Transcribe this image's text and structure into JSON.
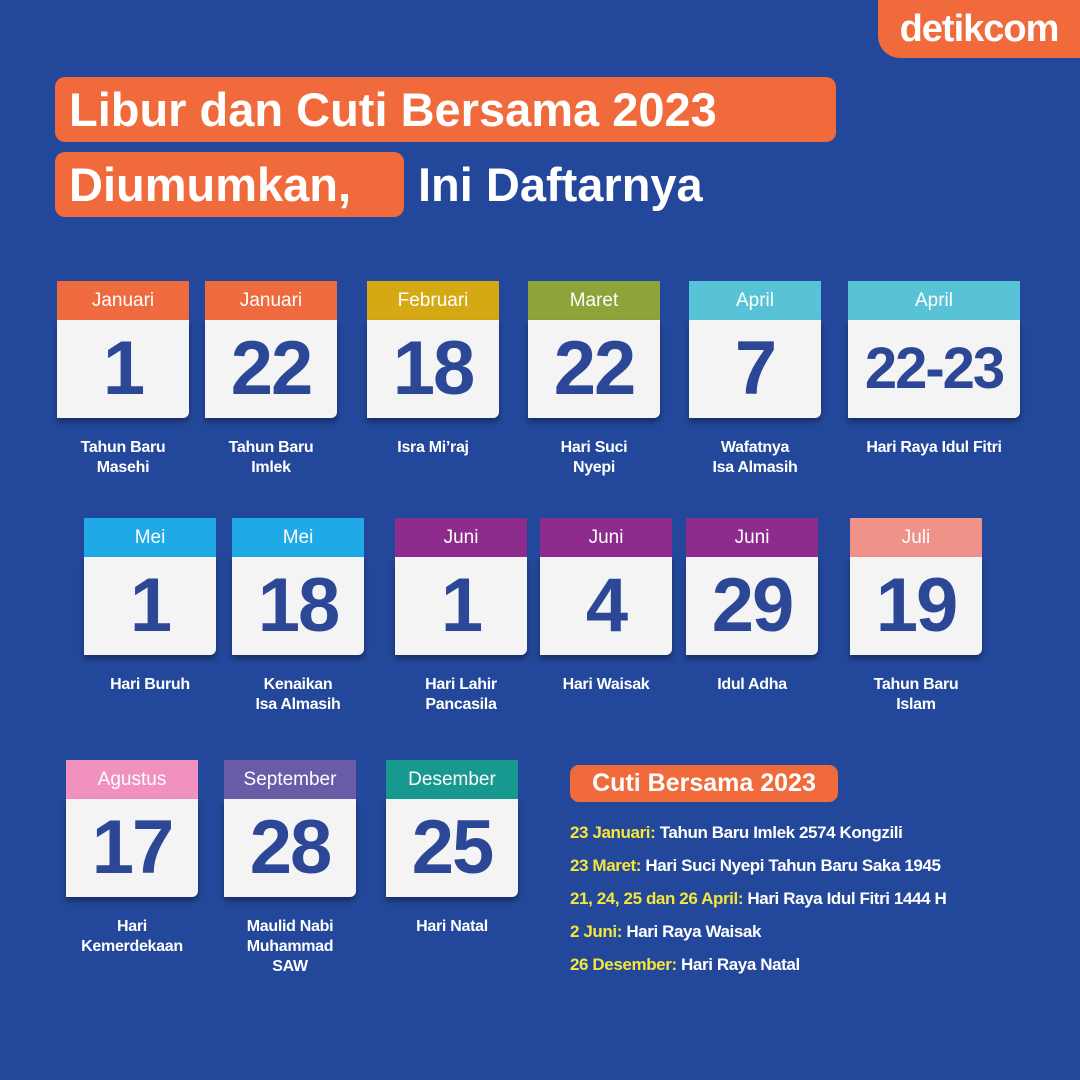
{
  "logo": "detikcom",
  "title": {
    "line1": "Libur dan Cuti Bersama 2023",
    "line2_highlight": "Diumumkan,",
    "line2_rest": "Ini Daftarnya"
  },
  "colors": {
    "background": "#23479a",
    "accent": "#f06a3c",
    "number": "#2b4796",
    "date_highlight": "#f5e63a"
  },
  "holidays": [
    {
      "month": "Januari",
      "day": "1",
      "name": "Tahun Baru\nMasehi",
      "color": "#ef6a3e"
    },
    {
      "month": "Januari",
      "day": "22",
      "name": "Tahun Baru\nImlek",
      "color": "#ef6a3e"
    },
    {
      "month": "Februari",
      "day": "18",
      "name": "Isra Mi’raj",
      "color": "#d4a913"
    },
    {
      "month": "Maret",
      "day": "22",
      "name": "Hari Suci\nNyepi",
      "color": "#8ea33a"
    },
    {
      "month": "April",
      "day": "7",
      "name": "Wafatnya\nIsa Almasih",
      "color": "#58c3d6"
    },
    {
      "month": "April",
      "day": "22-23",
      "name": "Hari Raya Idul Fitri",
      "color": "#58c3d6"
    },
    {
      "month": "Mei",
      "day": "1",
      "name": "Hari Buruh",
      "color": "#1fa9e6"
    },
    {
      "month": "Mei",
      "day": "18",
      "name": "Kenaikan\nIsa Almasih",
      "color": "#1fa9e6"
    },
    {
      "month": "Juni",
      "day": "1",
      "name": "Hari Lahir\nPancasila",
      "color": "#8e2c8e"
    },
    {
      "month": "Juni",
      "day": "4",
      "name": "Hari Waisak",
      "color": "#8e2c8e"
    },
    {
      "month": "Juni",
      "day": "29",
      "name": "Idul Adha",
      "color": "#8e2c8e"
    },
    {
      "month": "Juli",
      "day": "19",
      "name": "Tahun Baru\nIslam",
      "color": "#f0918a"
    },
    {
      "month": "Agustus",
      "day": "17",
      "name": "Hari\nKemerdekaan",
      "color": "#f191c0"
    },
    {
      "month": "September",
      "day": "28",
      "name": "Maulid Nabi\nMuhammad\nSAW",
      "color": "#6a5ba6"
    },
    {
      "month": "Desember",
      "day": "25",
      "name": "Hari Natal",
      "color": "#17998f"
    }
  ],
  "cuti": {
    "title": "Cuti Bersama 2023",
    "items": [
      {
        "date": "23 Januari:",
        "desc": "Tahun Baru Imlek 2574 Kongzili"
      },
      {
        "date": "23 Maret:",
        "desc": "Hari Suci Nyepi Tahun Baru Saka 1945"
      },
      {
        "date": "21, 24, 25 dan 26 April:",
        "desc": "Hari Raya Idul Fitri 1444 H"
      },
      {
        "date": "2 Juni:",
        "desc": "Hari Raya Waisak"
      },
      {
        "date": "26 Desember:",
        "desc": "Hari Raya Natal"
      }
    ]
  }
}
